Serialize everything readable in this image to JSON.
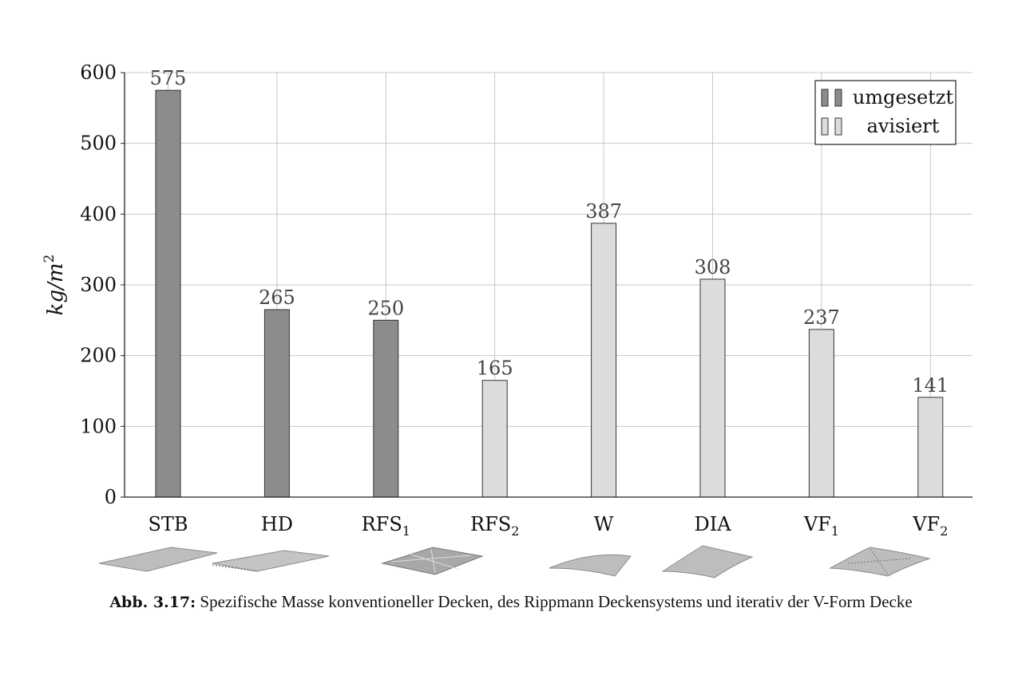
{
  "chart_data": {
    "type": "bar",
    "categories": [
      {
        "base": "STB",
        "sub": ""
      },
      {
        "base": "HD",
        "sub": ""
      },
      {
        "base": "RFS",
        "sub": "1"
      },
      {
        "base": "RFS",
        "sub": "2"
      },
      {
        "base": "W",
        "sub": ""
      },
      {
        "base": "DIA",
        "sub": ""
      },
      {
        "base": "VF",
        "sub": "1"
      },
      {
        "base": "VF",
        "sub": "2"
      }
    ],
    "values": [
      575,
      265,
      250,
      165,
      387,
      308,
      237,
      141
    ],
    "status": [
      "umgesetzt",
      "umgesetzt",
      "umgesetzt",
      "avisiert",
      "avisiert",
      "avisiert",
      "avisiert",
      "avisiert"
    ],
    "ylabel": "kg/m2",
    "ylim": [
      0,
      600
    ],
    "yticks": [
      0,
      100,
      200,
      300,
      400,
      500,
      600
    ],
    "grid": true,
    "legend": {
      "placement": "top-right",
      "entries": [
        {
          "label": "umgesetzt",
          "color": "#8c8c8c"
        },
        {
          "label": "avisiert",
          "color": "#dcdcdc"
        }
      ]
    }
  },
  "caption": {
    "label": "Abb. 3.17:",
    "text": "Spezifische Masse konventioneller Decken, des Rippmann Deckensystems und iterativ der V-Form Decke"
  }
}
